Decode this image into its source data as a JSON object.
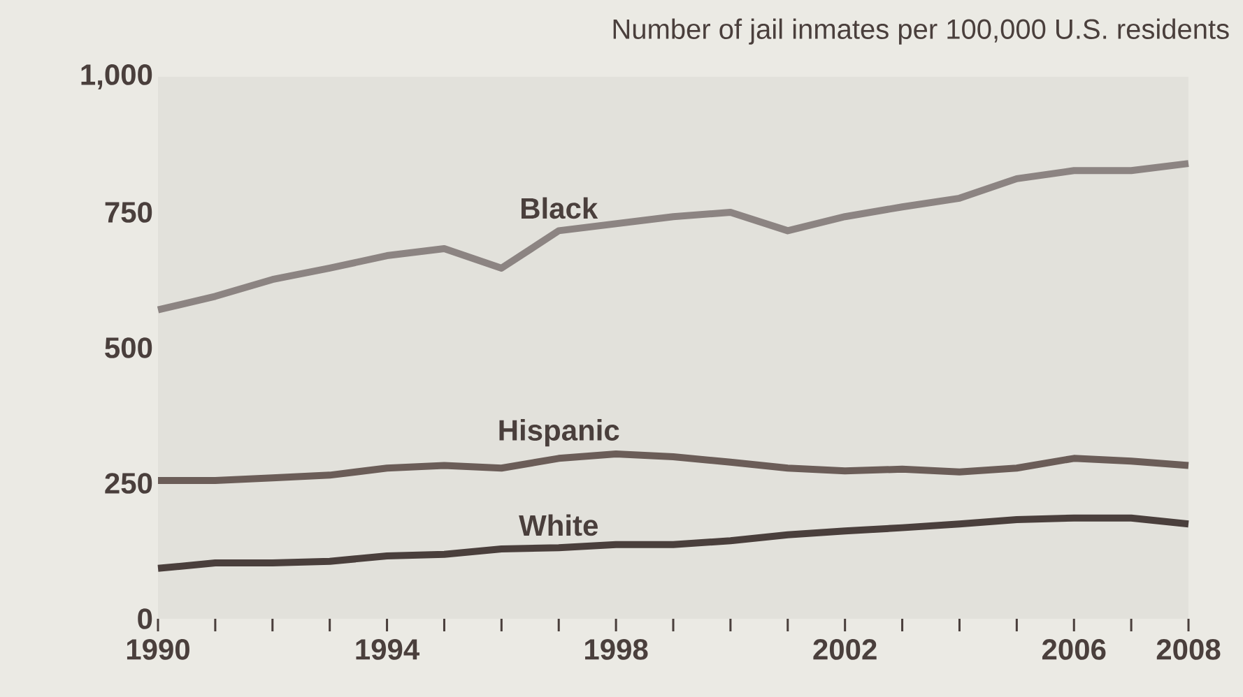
{
  "chart_data": {
    "type": "line",
    "title": "Number of jail inmates per 100,000 U.S. residents",
    "x": [
      1990,
      1991,
      1992,
      1993,
      1994,
      1995,
      1996,
      1997,
      1998,
      1999,
      2000,
      2001,
      2002,
      2003,
      2004,
      2005,
      2006,
      2007,
      2008
    ],
    "series": [
      {
        "name": "Black",
        "color": "#8c8482",
        "values": [
          570,
          595,
          626,
          647,
          670,
          683,
          647,
          716,
          729,
          742,
          750,
          716,
          742,
          760,
          776,
          812,
          827,
          827,
          840
        ]
      },
      {
        "name": "Hispanic",
        "color": "#6b5d58",
        "values": [
          255,
          255,
          260,
          265,
          278,
          283,
          278,
          296,
          304,
          299,
          289,
          278,
          273,
          276,
          271,
          278,
          296,
          291,
          283
        ]
      },
      {
        "name": "White",
        "color": "#4a3f3c",
        "values": [
          93,
          103,
          103,
          106,
          116,
          119,
          129,
          131,
          137,
          137,
          144,
          155,
          162,
          168,
          175,
          183,
          186,
          186,
          175
        ]
      }
    ],
    "xlim": [
      1990,
      2008
    ],
    "xticks": [
      1990,
      {
        "value": 1991,
        "label": null
      },
      {
        "value": 1992,
        "label": null
      },
      {
        "value": 1993,
        "label": null
      },
      1994,
      {
        "value": 1995,
        "label": null
      },
      {
        "value": 1996,
        "label": null
      },
      {
        "value": 1997,
        "label": null
      },
      1998,
      {
        "value": 1999,
        "label": null
      },
      {
        "value": 2000,
        "label": null
      },
      {
        "value": 2001,
        "label": null
      },
      2002,
      {
        "value": 2003,
        "label": null
      },
      {
        "value": 2004,
        "label": null
      },
      {
        "value": 2005,
        "label": null
      },
      2006,
      {
        "value": 2007,
        "label": null
      },
      2008
    ],
    "ylim": [
      0,
      1000
    ],
    "yticks": [
      0,
      250,
      500,
      750,
      {
        "value": 1000,
        "label": "1,000"
      }
    ],
    "legend": false,
    "grid": false,
    "marker": "none",
    "line_style": "solid"
  }
}
